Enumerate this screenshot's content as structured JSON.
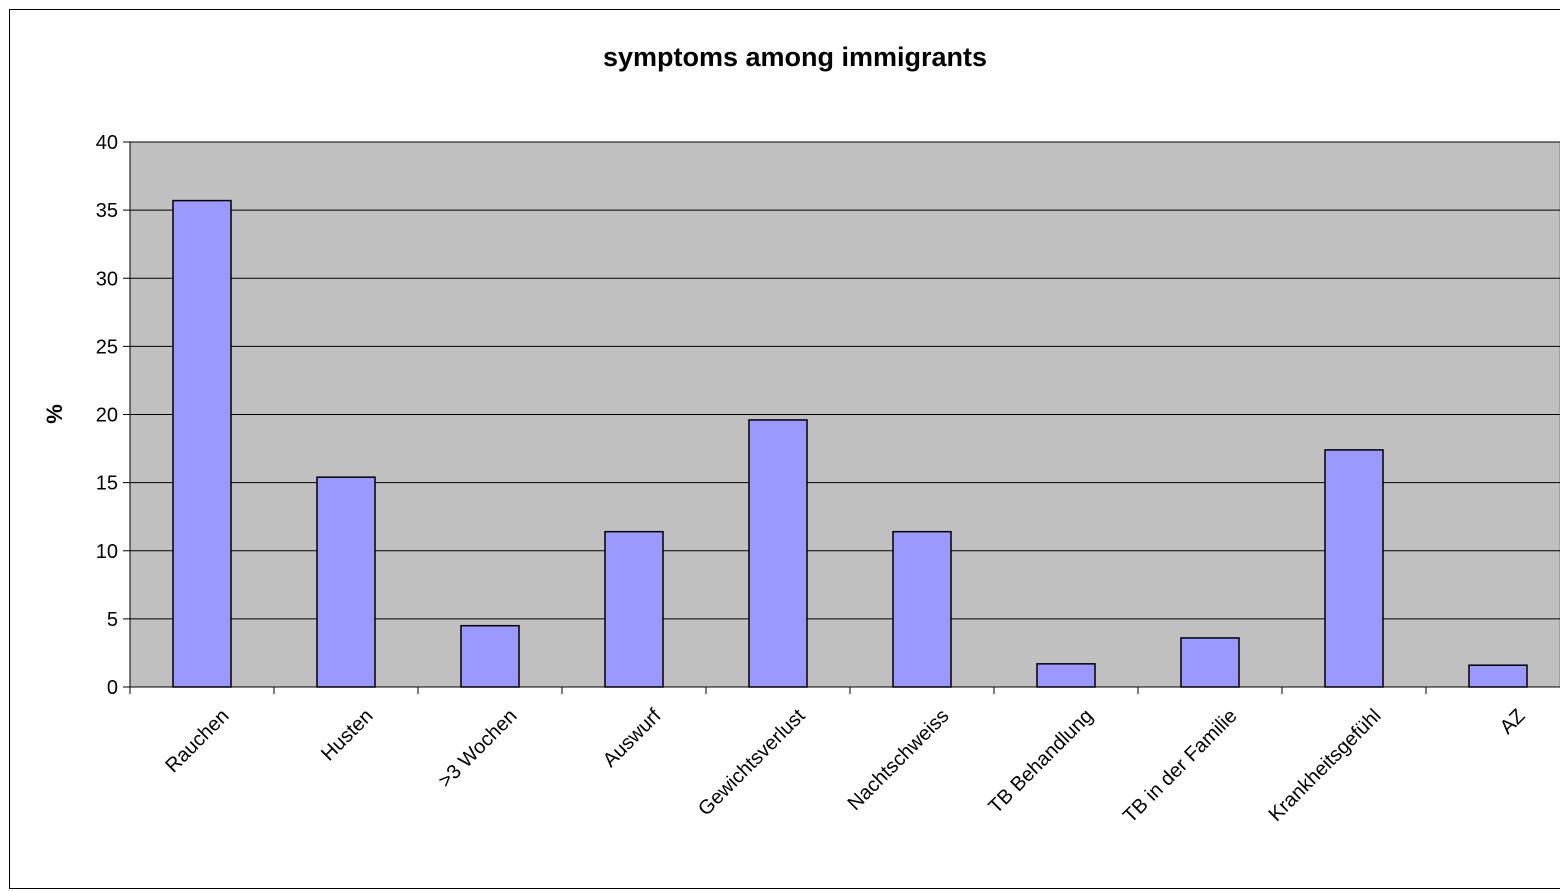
{
  "chart_data": {
    "type": "bar",
    "title": "symptoms among immigrants",
    "xlabel": "",
    "ylabel": "%",
    "ylim": [
      0,
      40
    ],
    "yticks": [
      0,
      5,
      10,
      15,
      20,
      25,
      30,
      35,
      40
    ],
    "grid": true,
    "legend": "none",
    "categories": [
      "Rauchen",
      "Husten",
      ">3 Wochen",
      "Auswurf",
      "Gewichtsverlust",
      "Nachtschweiss",
      "TB Behandlung",
      "TB in der Familie",
      "Krankheitsgefühl",
      "AZ"
    ],
    "values": [
      35.7,
      15.4,
      4.5,
      11.4,
      19.6,
      11.4,
      1.7,
      3.6,
      17.4,
      1.6
    ],
    "colors": {
      "bar": "#9999FF",
      "plot_background": "#C0C0C0",
      "gridline": "#000000"
    }
  }
}
